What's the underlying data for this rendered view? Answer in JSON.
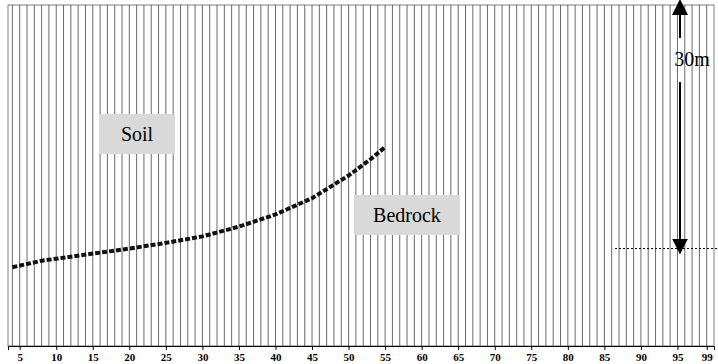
{
  "chart_data": {
    "type": "wiggle",
    "traces": [
      4,
      5,
      6,
      7,
      8,
      9,
      10,
      11,
      12,
      13,
      14,
      15,
      16,
      17,
      18,
      19,
      20,
      21,
      22,
      23,
      24,
      25,
      26,
      27,
      28,
      29,
      30,
      31,
      32,
      33,
      34,
      35,
      36,
      37,
      38,
      39,
      40,
      41,
      42,
      43,
      44,
      45,
      46,
      47,
      48,
      49,
      50,
      51,
      52,
      53,
      54,
      55,
      56,
      57,
      58,
      59,
      60,
      61,
      62,
      63,
      64,
      65,
      66,
      67,
      68,
      69,
      70,
      71,
      72,
      73,
      74,
      75,
      76,
      77,
      78,
      79,
      80,
      81,
      82,
      83,
      84,
      85,
      86,
      87,
      88,
      89,
      90,
      91,
      92,
      93,
      94,
      95,
      96,
      97,
      98,
      99
    ],
    "xlim": [
      3.4,
      100
    ],
    "xticks": [
      5,
      10,
      15,
      20,
      25,
      30,
      35,
      40,
      45,
      50,
      55,
      60,
      65,
      70,
      75,
      80,
      85,
      90,
      95,
      99
    ],
    "ylim": [
      0,
      42
    ],
    "tick_labels": "x",
    "reflector": {
      "x": [
        4,
        8,
        12,
        16,
        20,
        25,
        30,
        35,
        40,
        45,
        50,
        53,
        55
      ],
      "y": [
        32.3,
        31.5,
        31.0,
        30.5,
        30.0,
        29.3,
        28.5,
        27.3,
        25.8,
        23.8,
        21.0,
        19.0,
        17.5
      ]
    },
    "annotations": [
      "Soil",
      "Bedrock"
    ],
    "depth_marker": {
      "value": 30,
      "label": "30m"
    }
  }
}
